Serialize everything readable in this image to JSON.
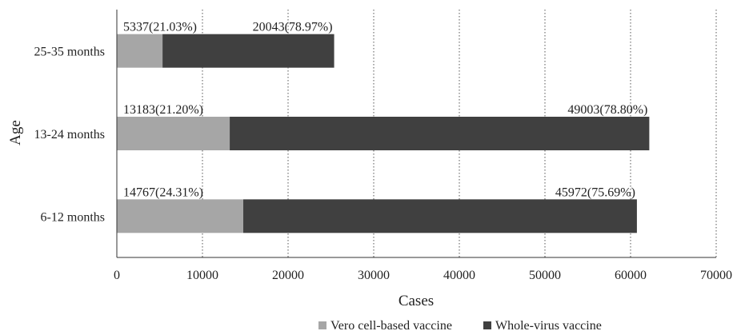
{
  "chart_data": {
    "type": "bar",
    "orientation": "horizontal",
    "stacked": true,
    "categories": [
      "25-35 months",
      "13-24 months",
      "6-12 months"
    ],
    "series": [
      {
        "name": "Vero cell-based vaccine",
        "color": "#a6a6a6",
        "values": [
          5337,
          13183,
          14767
        ],
        "labels": [
          "5337(21.03%)",
          "13183(21.20%)",
          "14767(24.31%)"
        ]
      },
      {
        "name": "Whole-virus vaccine",
        "color": "#404040",
        "values": [
          20043,
          49003,
          45972
        ],
        "labels": [
          "20043(78.97%)",
          "49003(78.80%)",
          "45972(75.69%)"
        ]
      }
    ],
    "xlabel": "Cases",
    "ylabel": "Age",
    "xlim": [
      0,
      70000
    ],
    "xticks": [
      "0",
      "10000",
      "20000",
      "30000",
      "40000",
      "50000",
      "60000",
      "70000"
    ],
    "grid": "vertical dotted",
    "legend": "bottom"
  }
}
